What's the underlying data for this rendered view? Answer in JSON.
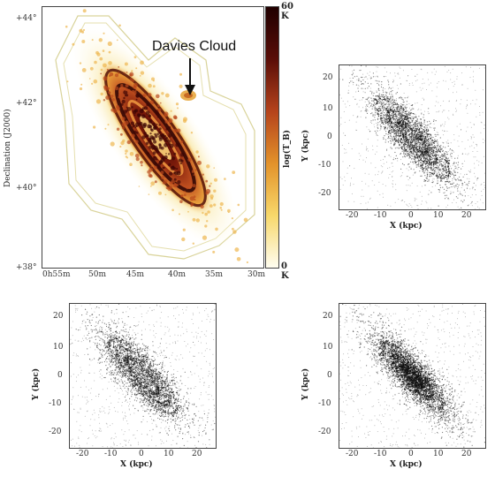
{
  "chart_data": [
    {
      "type": "heatmap",
      "annotation": "Davies Cloud",
      "ylabel": "Declination (J2000)",
      "y_ticks": [
        "+44°",
        "+42°",
        "+40°",
        "+38°"
      ],
      "x_ticks": [
        "0h55m",
        "50m",
        "45m",
        "40m",
        "35m",
        "30m"
      ],
      "colorbar": {
        "label": "log(T_B)",
        "max_label": "60 K",
        "min_label": "0 K",
        "colors": [
          "#fffdf0",
          "#f7d86a",
          "#e3922a",
          "#b5431c",
          "#5a0e08",
          "#200000"
        ]
      }
    },
    {
      "type": "scatter",
      "xlabel": "X (kpc)",
      "ylabel": "Y (kpc)",
      "x_ticks": [
        "-20",
        "-10",
        "0",
        "10",
        "20"
      ],
      "y_ticks": [
        "20",
        "10",
        "0",
        "-10",
        "-20"
      ],
      "xlim": [
        -25,
        25
      ],
      "ylim": [
        -25,
        25
      ]
    },
    {
      "type": "scatter",
      "xlabel": "X (kpc)",
      "ylabel": "Y (kpc)",
      "x_ticks": [
        "-20",
        "-10",
        "0",
        "10",
        "20"
      ],
      "y_ticks": [
        "20",
        "10",
        "0",
        "-10",
        "-20"
      ],
      "xlim": [
        -25,
        25
      ],
      "ylim": [
        -25,
        25
      ]
    },
    {
      "type": "scatter",
      "xlabel": "X (kpc)",
      "ylabel": "Y (kpc)",
      "x_ticks": [
        "-20",
        "-10",
        "0",
        "10",
        "20"
      ],
      "y_ticks": [
        "20",
        "10",
        "0",
        "-10",
        "-20"
      ],
      "xlim": [
        -25,
        25
      ],
      "ylim": [
        -25,
        25
      ]
    }
  ]
}
